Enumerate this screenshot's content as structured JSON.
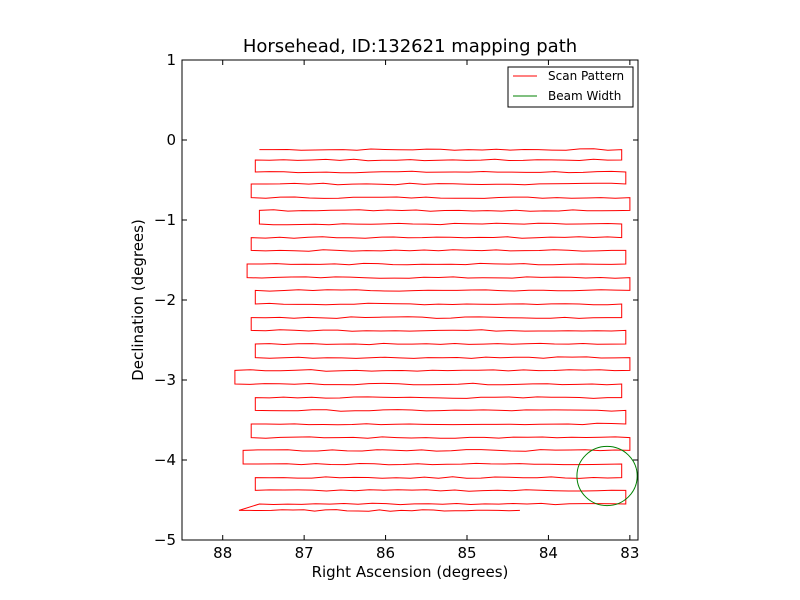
{
  "chart_data": {
    "type": "line",
    "title": "Horsehead, ID:132621 mapping path",
    "xlabel": "Right Ascension (degrees)",
    "ylabel": "Declination (degrees)",
    "xlim": [
      88.5,
      82.9
    ],
    "ylim": [
      -5,
      1
    ],
    "x_inverted": true,
    "x_ticks": [
      88,
      87,
      86,
      85,
      84,
      83
    ],
    "x_tick_labels": [
      "88",
      "87",
      "86",
      "85",
      "84",
      "83"
    ],
    "y_ticks": [
      1,
      0,
      -1,
      -2,
      -3,
      -4,
      -5
    ],
    "y_tick_labels": [
      "1",
      "0",
      "−1",
      "−2",
      "−3",
      "−4",
      "−5"
    ],
    "grid": false,
    "legend": {
      "placement": "top-right"
    },
    "series": [
      {
        "name": "Scan Pattern",
        "color": "#ff0000",
        "style": "boustrophedon-raster",
        "rows": [
          {
            "dec": -0.12,
            "ra_start": 87.55,
            "ra_end": 83.1
          },
          {
            "dec": -0.25,
            "ra_start": 83.1,
            "ra_end": 87.6
          },
          {
            "dec": -0.4,
            "ra_start": 87.6,
            "ra_end": 83.05
          },
          {
            "dec": -0.55,
            "ra_start": 83.05,
            "ra_end": 87.65
          },
          {
            "dec": -0.72,
            "ra_start": 87.65,
            "ra_end": 83.0
          },
          {
            "dec": -0.88,
            "ra_start": 83.0,
            "ra_end": 87.55
          },
          {
            "dec": -1.05,
            "ra_start": 87.55,
            "ra_end": 83.1
          },
          {
            "dec": -1.22,
            "ra_start": 83.1,
            "ra_end": 87.65
          },
          {
            "dec": -1.38,
            "ra_start": 87.65,
            "ra_end": 83.05
          },
          {
            "dec": -1.55,
            "ra_start": 83.05,
            "ra_end": 87.7
          },
          {
            "dec": -1.72,
            "ra_start": 87.7,
            "ra_end": 83.0
          },
          {
            "dec": -1.88,
            "ra_start": 83.0,
            "ra_end": 87.6
          },
          {
            "dec": -2.05,
            "ra_start": 87.6,
            "ra_end": 83.1
          },
          {
            "dec": -2.22,
            "ra_start": 83.1,
            "ra_end": 87.65
          },
          {
            "dec": -2.38,
            "ra_start": 87.65,
            "ra_end": 83.05
          },
          {
            "dec": -2.55,
            "ra_start": 83.05,
            "ra_end": 87.6
          },
          {
            "dec": -2.72,
            "ra_start": 87.6,
            "ra_end": 83.0
          },
          {
            "dec": -2.88,
            "ra_start": 83.0,
            "ra_end": 87.85
          },
          {
            "dec": -3.05,
            "ra_start": 87.85,
            "ra_end": 83.1
          },
          {
            "dec": -3.22,
            "ra_start": 83.1,
            "ra_end": 87.6
          },
          {
            "dec": -3.38,
            "ra_start": 87.6,
            "ra_end": 83.05
          },
          {
            "dec": -3.55,
            "ra_start": 83.05,
            "ra_end": 87.65
          },
          {
            "dec": -3.72,
            "ra_start": 87.65,
            "ra_end": 83.0
          },
          {
            "dec": -3.88,
            "ra_start": 83.0,
            "ra_end": 87.75
          },
          {
            "dec": -4.05,
            "ra_start": 87.75,
            "ra_end": 83.1
          },
          {
            "dec": -4.22,
            "ra_start": 83.1,
            "ra_end": 87.6
          },
          {
            "dec": -4.38,
            "ra_start": 87.6,
            "ra_end": 83.05
          },
          {
            "dec": -4.55,
            "ra_start": 83.05,
            "ra_end": 87.55
          },
          {
            "dec": -4.63,
            "ra_start": 87.8,
            "ra_end": 84.35
          }
        ]
      },
      {
        "name": "Beam Width",
        "color": "#008000",
        "shape": "circle",
        "center": {
          "ra": 83.28,
          "dec": -4.2
        },
        "radius_deg": 0.37
      }
    ]
  }
}
